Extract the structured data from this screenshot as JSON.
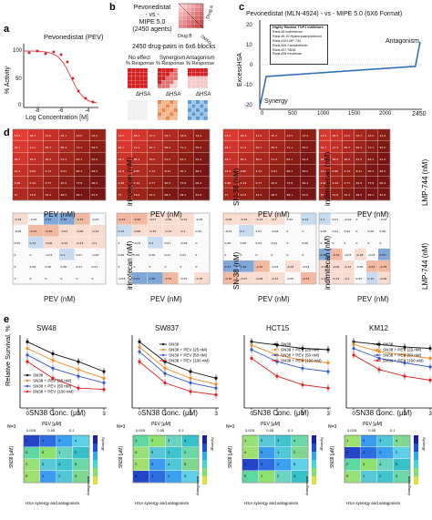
{
  "panel_a": {
    "letter": "a",
    "title": "Pevonedistat (PEV)",
    "ylabel": "% Activity",
    "xlabel": "Log Concentration [M]",
    "xticks": [
      "-8",
      "-6",
      "-4"
    ],
    "yticks": [
      "0",
      "50",
      "100"
    ],
    "colors": {
      "curve": "#e8383c",
      "points": "#d41c22"
    }
  },
  "panel_b": {
    "letter": "b",
    "title_lines": [
      "Pevonedistat",
      "- vs -",
      "MIPE 5.0",
      "(2450 agents)"
    ],
    "drug_a": "Drug A",
    "drug_b": "Drug B",
    "dmso": "DMSO",
    "subtitle": "2450 drug-pairs in 6x6 blocks",
    "categories": [
      "No effect",
      "Synergism",
      "Antagonism"
    ],
    "row1_label": "% Response",
    "row2_label": "ΔHSA"
  },
  "panel_c": {
    "letter": "c",
    "title": "Pevonedistat (MLN-4924) - vs - MIPE 5.0 (6X6 Format)",
    "ylabel": "ExcessHSA",
    "yticks": [
      "-20",
      "-10",
      "0",
      "10",
      "20"
    ],
    "xticks": [
      "0",
      "500",
      "1000",
      "1500",
      "2000",
      "2450"
    ],
    "synergy": "Synergy",
    "antagonism": "Antagonism",
    "legend_title": "Highly Ranked TOP1 Inhibitors",
    "legend_items": [
      "Rank #5  Indimitecan",
      "Rank #6  10-Hydroxycamptothecin",
      "Rank #15 LMP-744",
      "Rank #26 Camptothecin",
      "Rank #37 SN38",
      "Rank #38 Irinotecan"
    ],
    "color": "#2d6fb7"
  },
  "panel_d": {
    "letter": "d",
    "drugs": [
      "irinotecan (nM)",
      "SN-38 (nM)",
      "indimitecan (nM)",
      "LMP-744 (nM)"
    ],
    "xlabel": "PEV (nM)"
  },
  "panel_e": {
    "letter": "e",
    "ylabel": "Relative Survival, %",
    "xlabel": "SN38 Conc. (μM)",
    "cell_lines": [
      "SW48",
      "SW837",
      "HCT15",
      "KM12"
    ],
    "legend": [
      "SN38",
      "SN38 + PEV (25 nM)",
      "SN38 + PEV (50 nM)",
      "SN38 + PEV (100 nM)"
    ],
    "colors": [
      "#111111",
      "#f08a24",
      "#3657c8",
      "#e02020"
    ],
    "xticks": [
      "0",
      "1",
      "2",
      "3"
    ]
  },
  "panel_hsa": {
    "n_label": "N=3",
    "top_label": "PEV [μM]",
    "top_ticks": [
      "0.025",
      "0.05",
      "0.1"
    ],
    "left_label": "SN38 [μM]",
    "bottom_label": "HSA synergy and antagonism",
    "synergy": "Synergy",
    "antagonism": "Antagonism"
  }
}
